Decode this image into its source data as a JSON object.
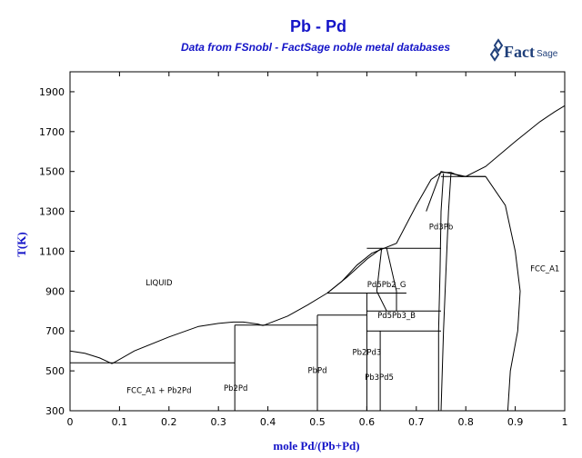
{
  "header": {
    "title": "Pb - Pd",
    "subtitle": "Data from FSnobl - FactSage noble metal databases",
    "logo_text": "FactSage"
  },
  "colors": {
    "title": "#1414c8",
    "lines": "#000000",
    "axis_title": "#1414c8"
  },
  "chart_data": {
    "type": "line",
    "title": "Pb - Pd",
    "subtitle": "Data from FSnobl - FactSage noble metal databases",
    "xlabel": "mole Pd/(Pb+Pd)",
    "ylabel": "T(K)",
    "xlim": [
      0,
      1
    ],
    "ylim": [
      300,
      2000
    ],
    "xticks": [
      0,
      0.1,
      0.2,
      0.3,
      0.4,
      0.5,
      0.6,
      0.7,
      0.8,
      0.9,
      1
    ],
    "xtick_labels": [
      "0",
      "0.1",
      "0.2",
      "0.3",
      "0.4",
      "0.5",
      "0.6",
      "0.7",
      "0.8",
      "0.9",
      "1"
    ],
    "yticks": [
      300,
      500,
      700,
      900,
      1100,
      1300,
      1500,
      1700,
      1900
    ],
    "ytick_labels": [
      "300",
      "500",
      "700",
      "900",
      "1100",
      "1300",
      "1500",
      "1700",
      "1900"
    ],
    "grid": false,
    "series": [
      {
        "points": [
          [
            0,
            600
          ],
          [
            0.03,
            588
          ],
          [
            0.06,
            565
          ],
          [
            0.085,
            536
          ]
        ]
      },
      {
        "points": [
          [
            0.085,
            536
          ],
          [
            0.13,
            600
          ],
          [
            0.2,
            670
          ],
          [
            0.26,
            723
          ],
          [
            0.3,
            738
          ],
          [
            0.33,
            745
          ],
          [
            0.35,
            745
          ],
          [
            0.38,
            735
          ],
          [
            0.39,
            727
          ]
        ]
      },
      {
        "points": [
          [
            0.39,
            727
          ],
          [
            0.44,
            775
          ],
          [
            0.48,
            830
          ],
          [
            0.52,
            890
          ]
        ]
      },
      {
        "points": [
          [
            0.52,
            890
          ],
          [
            0.56,
            970
          ],
          [
            0.6,
            1060
          ],
          [
            0.63,
            1115
          ]
        ]
      },
      {
        "points": [
          [
            0.52,
            890
          ],
          [
            0.55,
            950
          ],
          [
            0.58,
            1030
          ],
          [
            0.61,
            1090
          ],
          [
            0.66,
            1140
          ],
          [
            0.7,
            1330
          ],
          [
            0.73,
            1460
          ],
          [
            0.75,
            1495
          ],
          [
            0.77,
            1495
          ],
          [
            0.79,
            1475
          ],
          [
            0.8,
            1475
          ],
          [
            0.84,
            1525
          ],
          [
            0.9,
            1650
          ],
          [
            0.95,
            1750
          ],
          [
            0.98,
            1800
          ],
          [
            1,
            1830
          ]
        ]
      },
      {
        "points": [
          [
            0.84,
            1475
          ],
          [
            0.88,
            1330
          ],
          [
            0.9,
            1100
          ],
          [
            0.91,
            900
          ],
          [
            0.905,
            700
          ],
          [
            0.89,
            500
          ],
          [
            0.885,
            300
          ]
        ]
      },
      {
        "points": [
          [
            0.77,
            1490
          ],
          [
            0.765,
            1300
          ],
          [
            0.76,
            1000
          ],
          [
            0.755,
            700
          ],
          [
            0.75,
            300
          ]
        ]
      },
      {
        "points": [
          [
            0.755,
            1490
          ],
          [
            0.75,
            1300
          ],
          [
            0.748,
            1000
          ],
          [
            0.745,
            700
          ],
          [
            0.745,
            300
          ]
        ]
      },
      {
        "points": [
          [
            0.72,
            1300
          ],
          [
            0.75,
            1500
          ],
          [
            0.8,
            1475
          ],
          [
            0.84,
            1475
          ]
        ]
      },
      {
        "points": [
          [
            0.63,
            1115
          ],
          [
            0.62,
            900
          ],
          [
            0.64,
            800
          ]
        ]
      },
      {
        "points": [
          [
            0.64,
            1115
          ],
          [
            0.66,
            900
          ],
          [
            0.66,
            800
          ]
        ]
      },
      {
        "points": [
          [
            0,
            540
          ],
          [
            0.333,
            540
          ]
        ]
      },
      {
        "points": [
          [
            0.333,
            300
          ],
          [
            0.333,
            730
          ]
        ]
      },
      {
        "points": [
          [
            0.333,
            730
          ],
          [
            0.5,
            730
          ]
        ]
      },
      {
        "points": [
          [
            0.5,
            300
          ],
          [
            0.5,
            780
          ]
        ]
      },
      {
        "points": [
          [
            0.5,
            780
          ],
          [
            0.6,
            780
          ]
        ]
      },
      {
        "points": [
          [
            0.6,
            300
          ],
          [
            0.6,
            890
          ]
        ]
      },
      {
        "points": [
          [
            0.52,
            890
          ],
          [
            0.68,
            890
          ]
        ]
      },
      {
        "points": [
          [
            0.6,
            800
          ],
          [
            0.75,
            800
          ]
        ]
      },
      {
        "points": [
          [
            0.6,
            700
          ],
          [
            0.75,
            700
          ]
        ]
      },
      {
        "points": [
          [
            0.627,
            300
          ],
          [
            0.627,
            700
          ]
        ]
      },
      {
        "points": [
          [
            0.6,
            1115
          ],
          [
            0.75,
            1115
          ]
        ]
      },
      {
        "points": [
          [
            0.75,
            1475
          ],
          [
            0.84,
            1475
          ]
        ]
      }
    ],
    "annotations": [
      {
        "text": "LIQUID",
        "x": 0.18,
        "y": 930
      },
      {
        "text": "FCC_A1",
        "x": 0.96,
        "y": 1000
      },
      {
        "text": "FCC_A1 + Pb2Pd",
        "x": 0.18,
        "y": 390
      },
      {
        "text": "Pb2Pd",
        "x": 0.335,
        "y": 400
      },
      {
        "text": "PbPd",
        "x": 0.5,
        "y": 490
      },
      {
        "text": "Pb2Pd3",
        "x": 0.6,
        "y": 580
      },
      {
        "text": "Pb3Pd5",
        "x": 0.625,
        "y": 455
      },
      {
        "text": "Pd5Pb2_G",
        "x": 0.64,
        "y": 920
      },
      {
        "text": "Pd5Pb3_B",
        "x": 0.66,
        "y": 765
      },
      {
        "text": "Pd3Pb",
        "x": 0.75,
        "y": 1210
      }
    ]
  }
}
